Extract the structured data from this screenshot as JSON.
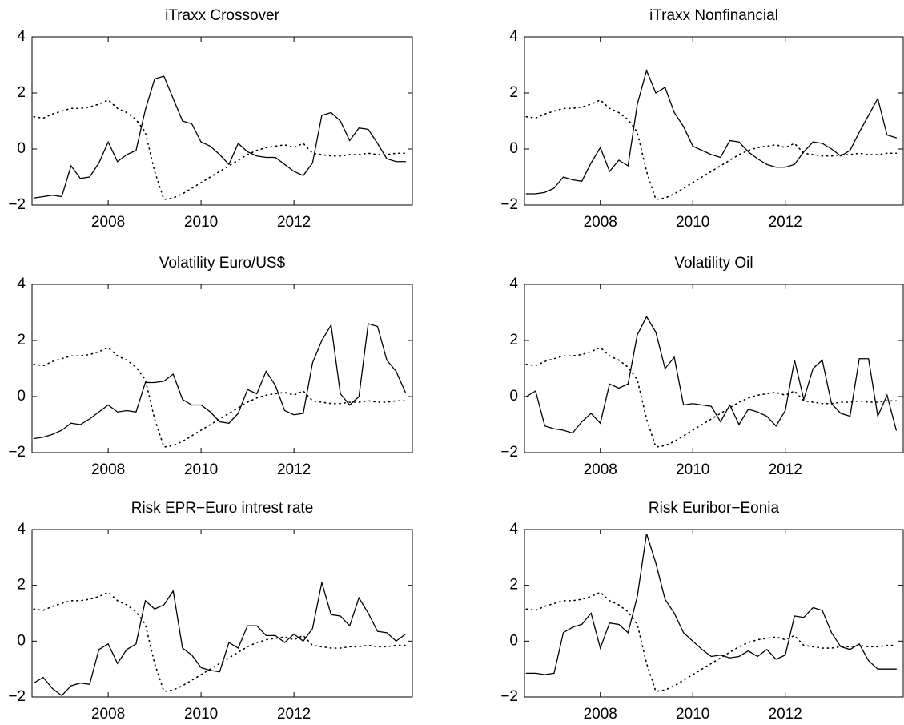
{
  "chart_data": [
    {
      "type": "line",
      "title": "iTraxx Crossover",
      "x": [
        2006.4,
        2006.6,
        2006.8,
        2007,
        2007.2,
        2007.4,
        2007.6,
        2007.8,
        2008,
        2008.2,
        2008.4,
        2008.6,
        2008.8,
        2009,
        2009.2,
        2009.4,
        2009.6,
        2009.8,
        2010,
        2010.2,
        2010.4,
        2010.6,
        2010.8,
        2011,
        2011.2,
        2011.4,
        2011.6,
        2011.8,
        2012,
        2012.2,
        2012.4,
        2012.6,
        2012.8,
        2013,
        2013.2,
        2013.4,
        2013.6,
        2013.8,
        2014,
        2014.2,
        2014.4
      ],
      "series": [
        {
          "color": "#000000",
          "linestyle": "solid",
          "values": [
            -1.75,
            -1.7,
            -1.65,
            -1.7,
            -0.6,
            -1.05,
            -1.0,
            -0.5,
            0.25,
            -0.45,
            -0.2,
            -0.05,
            1.4,
            2.5,
            2.6,
            1.8,
            1.0,
            0.9,
            0.25,
            0.1,
            -0.2,
            -0.55,
            0.2,
            -0.1,
            -0.25,
            -0.3,
            -0.3,
            -0.55,
            -0.8,
            -0.95,
            -0.5,
            1.2,
            1.3,
            1.0,
            0.3,
            0.75,
            0.7,
            0.2,
            -0.35,
            -0.45,
            -0.45
          ]
        },
        {
          "color": "#000000",
          "linestyle": "dotted",
          "values": [
            1.15,
            1.1,
            1.25,
            1.35,
            1.45,
            1.45,
            1.5,
            1.6,
            1.75,
            1.45,
            1.3,
            1.05,
            0.6,
            -0.8,
            -1.8,
            -1.75,
            -1.6,
            -1.4,
            -1.2,
            -1.0,
            -0.8,
            -0.6,
            -0.4,
            -0.2,
            -0.05,
            0.05,
            0.1,
            0.15,
            0.05,
            0.2,
            -0.15,
            -0.2,
            -0.25,
            -0.25,
            -0.2,
            -0.2,
            -0.15,
            -0.2,
            -0.2,
            -0.15,
            -0.15
          ]
        }
      ],
      "xlim": [
        2006.36,
        2014.55
      ],
      "xticks": [
        2008,
        2010,
        2012
      ],
      "ylim": [
        -2,
        4
      ],
      "yticks": [
        {
          "value": -2,
          "label": "−2"
        },
        0,
        2,
        4
      ],
      "grid": false
    },
    {
      "type": "line",
      "title": "iTraxx Nonfinancial",
      "x": [
        2006.4,
        2006.6,
        2006.8,
        2007,
        2007.2,
        2007.4,
        2007.6,
        2007.8,
        2008,
        2008.2,
        2008.4,
        2008.6,
        2008.8,
        2009,
        2009.2,
        2009.4,
        2009.6,
        2009.8,
        2010,
        2010.2,
        2010.4,
        2010.6,
        2010.8,
        2011,
        2011.2,
        2011.4,
        2011.6,
        2011.8,
        2012,
        2012.2,
        2012.4,
        2012.6,
        2012.8,
        2013,
        2013.2,
        2013.4,
        2013.6,
        2013.8,
        2014,
        2014.2,
        2014.4
      ],
      "series": [
        {
          "color": "#000000",
          "linestyle": "solid",
          "values": [
            -1.6,
            -1.6,
            -1.55,
            -1.4,
            -1.0,
            -1.1,
            -1.15,
            -0.5,
            0.05,
            -0.8,
            -0.4,
            -0.6,
            1.6,
            2.8,
            2.0,
            2.2,
            1.3,
            0.8,
            0.1,
            -0.05,
            -0.2,
            -0.3,
            0.3,
            0.25,
            -0.1,
            -0.35,
            -0.55,
            -0.65,
            -0.65,
            -0.55,
            -0.1,
            0.25,
            0.2,
            0.0,
            -0.25,
            -0.05,
            0.6,
            1.2,
            1.8,
            0.5,
            0.4
          ]
        },
        {
          "color": "#000000",
          "linestyle": "dotted",
          "values": [
            1.15,
            1.1,
            1.25,
            1.35,
            1.45,
            1.45,
            1.5,
            1.6,
            1.75,
            1.45,
            1.3,
            1.05,
            0.6,
            -0.8,
            -1.8,
            -1.75,
            -1.6,
            -1.4,
            -1.2,
            -1.0,
            -0.8,
            -0.6,
            -0.4,
            -0.2,
            -0.05,
            0.05,
            0.1,
            0.15,
            0.05,
            0.2,
            -0.15,
            -0.2,
            -0.25,
            -0.25,
            -0.2,
            -0.2,
            -0.15,
            -0.2,
            -0.2,
            -0.15,
            -0.15
          ]
        }
      ],
      "xlim": [
        2006.36,
        2014.55
      ],
      "xticks": [
        2008,
        2010,
        2012
      ],
      "ylim": [
        -2,
        4
      ],
      "yticks": [
        {
          "value": -2,
          "label": "−2"
        },
        0,
        2,
        4
      ],
      "grid": false
    },
    {
      "type": "line",
      "title": "Volatility Euro/US$",
      "x": [
        2006.4,
        2006.6,
        2006.8,
        2007,
        2007.2,
        2007.4,
        2007.6,
        2007.8,
        2008,
        2008.2,
        2008.4,
        2008.6,
        2008.8,
        2009,
        2009.2,
        2009.4,
        2009.6,
        2009.8,
        2010,
        2010.2,
        2010.4,
        2010.6,
        2010.8,
        2011,
        2011.2,
        2011.4,
        2011.6,
        2011.8,
        2012,
        2012.2,
        2012.4,
        2012.6,
        2012.8,
        2013,
        2013.2,
        2013.4,
        2013.6,
        2013.8,
        2014,
        2014.2,
        2014.4
      ],
      "series": [
        {
          "color": "#000000",
          "linestyle": "solid",
          "values": [
            -1.5,
            -1.45,
            -1.35,
            -1.2,
            -0.95,
            -1.0,
            -0.8,
            -0.55,
            -0.3,
            -0.55,
            -0.5,
            -0.55,
            0.5,
            0.5,
            0.55,
            0.8,
            -0.1,
            -0.3,
            -0.3,
            -0.55,
            -0.9,
            -0.95,
            -0.6,
            0.25,
            0.1,
            0.9,
            0.4,
            -0.5,
            -0.65,
            -0.6,
            1.2,
            2.0,
            2.55,
            0.1,
            -0.3,
            0.0,
            2.6,
            2.5,
            1.3,
            0.9,
            0.15
          ]
        },
        {
          "color": "#000000",
          "linestyle": "dotted",
          "values": [
            1.15,
            1.1,
            1.25,
            1.35,
            1.45,
            1.45,
            1.5,
            1.6,
            1.75,
            1.45,
            1.3,
            1.05,
            0.6,
            -0.8,
            -1.8,
            -1.75,
            -1.6,
            -1.4,
            -1.2,
            -1.0,
            -0.8,
            -0.6,
            -0.4,
            -0.2,
            -0.05,
            0.05,
            0.1,
            0.15,
            0.05,
            0.2,
            -0.15,
            -0.2,
            -0.25,
            -0.25,
            -0.2,
            -0.2,
            -0.15,
            -0.2,
            -0.2,
            -0.15,
            -0.15
          ]
        }
      ],
      "xlim": [
        2006.36,
        2014.55
      ],
      "xticks": [
        2008,
        2010,
        2012
      ],
      "ylim": [
        -2,
        4
      ],
      "yticks": [
        {
          "value": -2,
          "label": "−2"
        },
        0,
        2,
        4
      ],
      "grid": false
    },
    {
      "type": "line",
      "title": "Volatility Oil",
      "x": [
        2006.4,
        2006.6,
        2006.8,
        2007,
        2007.2,
        2007.4,
        2007.6,
        2007.8,
        2008,
        2008.2,
        2008.4,
        2008.6,
        2008.8,
        2009,
        2009.2,
        2009.4,
        2009.6,
        2009.8,
        2010,
        2010.2,
        2010.4,
        2010.6,
        2010.8,
        2011,
        2011.2,
        2011.4,
        2011.6,
        2011.8,
        2012,
        2012.2,
        2012.4,
        2012.6,
        2012.8,
        2013,
        2013.2,
        2013.4,
        2013.6,
        2013.8,
        2014,
        2014.2,
        2014.4
      ],
      "series": [
        {
          "color": "#000000",
          "linestyle": "solid",
          "values": [
            0.0,
            0.2,
            -1.05,
            -1.15,
            -1.2,
            -1.3,
            -0.9,
            -0.6,
            -0.95,
            0.45,
            0.3,
            0.45,
            2.2,
            2.85,
            2.3,
            1.0,
            1.4,
            -0.3,
            -0.25,
            -0.3,
            -0.35,
            -0.9,
            -0.3,
            -1.0,
            -0.45,
            -0.55,
            -0.7,
            -1.05,
            -0.5,
            1.3,
            -0.1,
            1.0,
            1.3,
            -0.25,
            -0.6,
            -0.7,
            1.35,
            1.35,
            -0.7,
            0.05,
            -1.2
          ]
        },
        {
          "color": "#000000",
          "linestyle": "dotted",
          "values": [
            1.15,
            1.1,
            1.25,
            1.35,
            1.45,
            1.45,
            1.5,
            1.6,
            1.75,
            1.45,
            1.3,
            1.05,
            0.6,
            -0.8,
            -1.8,
            -1.75,
            -1.6,
            -1.4,
            -1.2,
            -1.0,
            -0.8,
            -0.6,
            -0.4,
            -0.2,
            -0.05,
            0.05,
            0.1,
            0.15,
            0.05,
            0.2,
            -0.15,
            -0.2,
            -0.25,
            -0.25,
            -0.2,
            -0.2,
            -0.15,
            -0.2,
            -0.2,
            -0.15,
            -0.15
          ]
        }
      ],
      "xlim": [
        2006.36,
        2014.55
      ],
      "xticks": [
        2008,
        2010,
        2012
      ],
      "ylim": [
        -2,
        4
      ],
      "yticks": [
        {
          "value": -2,
          "label": "−2"
        },
        0,
        2,
        4
      ],
      "grid": false
    },
    {
      "type": "line",
      "title": "Risk EPR−Euro intrest rate",
      "x": [
        2006.4,
        2006.6,
        2006.8,
        2007,
        2007.2,
        2007.4,
        2007.6,
        2007.8,
        2008,
        2008.2,
        2008.4,
        2008.6,
        2008.8,
        2009,
        2009.2,
        2009.4,
        2009.6,
        2009.8,
        2010,
        2010.2,
        2010.4,
        2010.6,
        2010.8,
        2011,
        2011.2,
        2011.4,
        2011.6,
        2011.8,
        2012,
        2012.2,
        2012.4,
        2012.6,
        2012.8,
        2013,
        2013.2,
        2013.4,
        2013.6,
        2013.8,
        2014,
        2014.2,
        2014.4
      ],
      "series": [
        {
          "color": "#000000",
          "linestyle": "solid",
          "values": [
            -1.5,
            -1.3,
            -1.7,
            -1.95,
            -1.6,
            -1.5,
            -1.55,
            -0.3,
            -0.1,
            -0.8,
            -0.3,
            -0.1,
            1.45,
            1.15,
            1.3,
            1.8,
            -0.25,
            -0.5,
            -0.95,
            -1.05,
            -1.1,
            -0.05,
            -0.25,
            0.55,
            0.55,
            0.2,
            0.2,
            -0.05,
            0.25,
            0.0,
            0.45,
            2.1,
            0.95,
            0.9,
            0.55,
            1.55,
            1.0,
            0.35,
            0.3,
            0.0,
            0.25
          ]
        },
        {
          "color": "#000000",
          "linestyle": "dotted",
          "values": [
            1.15,
            1.1,
            1.25,
            1.35,
            1.45,
            1.45,
            1.5,
            1.6,
            1.75,
            1.45,
            1.3,
            1.05,
            0.6,
            -0.8,
            -1.8,
            -1.75,
            -1.6,
            -1.4,
            -1.2,
            -1.0,
            -0.8,
            -0.6,
            -0.4,
            -0.2,
            -0.05,
            0.05,
            0.1,
            0.15,
            0.05,
            0.2,
            -0.15,
            -0.2,
            -0.25,
            -0.25,
            -0.2,
            -0.2,
            -0.15,
            -0.2,
            -0.2,
            -0.15,
            -0.15
          ]
        }
      ],
      "xlim": [
        2006.36,
        2014.55
      ],
      "xticks": [
        2008,
        2010,
        2012
      ],
      "ylim": [
        -2,
        4
      ],
      "yticks": [
        {
          "value": -2,
          "label": "−2"
        },
        0,
        2,
        4
      ],
      "grid": false
    },
    {
      "type": "line",
      "title": "Risk Euribor−Eonia",
      "x": [
        2006.4,
        2006.6,
        2006.8,
        2007,
        2007.2,
        2007.4,
        2007.6,
        2007.8,
        2008,
        2008.2,
        2008.4,
        2008.6,
        2008.8,
        2009,
        2009.2,
        2009.4,
        2009.6,
        2009.8,
        2010,
        2010.2,
        2010.4,
        2010.6,
        2010.8,
        2011,
        2011.2,
        2011.4,
        2011.6,
        2011.8,
        2012,
        2012.2,
        2012.4,
        2012.6,
        2012.8,
        2013,
        2013.2,
        2013.4,
        2013.6,
        2013.8,
        2014,
        2014.2,
        2014.4
      ],
      "series": [
        {
          "color": "#000000",
          "linestyle": "solid",
          "values": [
            -1.15,
            -1.15,
            -1.2,
            -1.15,
            0.3,
            0.5,
            0.6,
            1.0,
            -0.25,
            0.65,
            0.6,
            0.3,
            1.6,
            3.85,
            2.8,
            1.5,
            1.0,
            0.3,
            0.0,
            -0.3,
            -0.55,
            -0.5,
            -0.6,
            -0.55,
            -0.35,
            -0.55,
            -0.3,
            -0.65,
            -0.5,
            0.9,
            0.85,
            1.2,
            1.1,
            0.3,
            -0.2,
            -0.3,
            -0.1,
            -0.7,
            -1.0,
            -1.0,
            -1.0
          ]
        },
        {
          "color": "#000000",
          "linestyle": "dotted",
          "values": [
            1.15,
            1.1,
            1.25,
            1.35,
            1.45,
            1.45,
            1.5,
            1.6,
            1.75,
            1.45,
            1.3,
            1.05,
            0.6,
            -0.8,
            -1.8,
            -1.75,
            -1.6,
            -1.4,
            -1.2,
            -1.0,
            -0.8,
            -0.6,
            -0.4,
            -0.2,
            -0.05,
            0.05,
            0.1,
            0.15,
            0.05,
            0.2,
            -0.15,
            -0.2,
            -0.25,
            -0.25,
            -0.2,
            -0.2,
            -0.15,
            -0.2,
            -0.2,
            -0.15,
            -0.15
          ]
        }
      ],
      "xlim": [
        2006.36,
        2014.55
      ],
      "xticks": [
        2008,
        2010,
        2012
      ],
      "ylim": [
        -2,
        4
      ],
      "yticks": [
        {
          "value": -2,
          "label": "−2"
        },
        0,
        2,
        4
      ],
      "grid": false
    }
  ]
}
